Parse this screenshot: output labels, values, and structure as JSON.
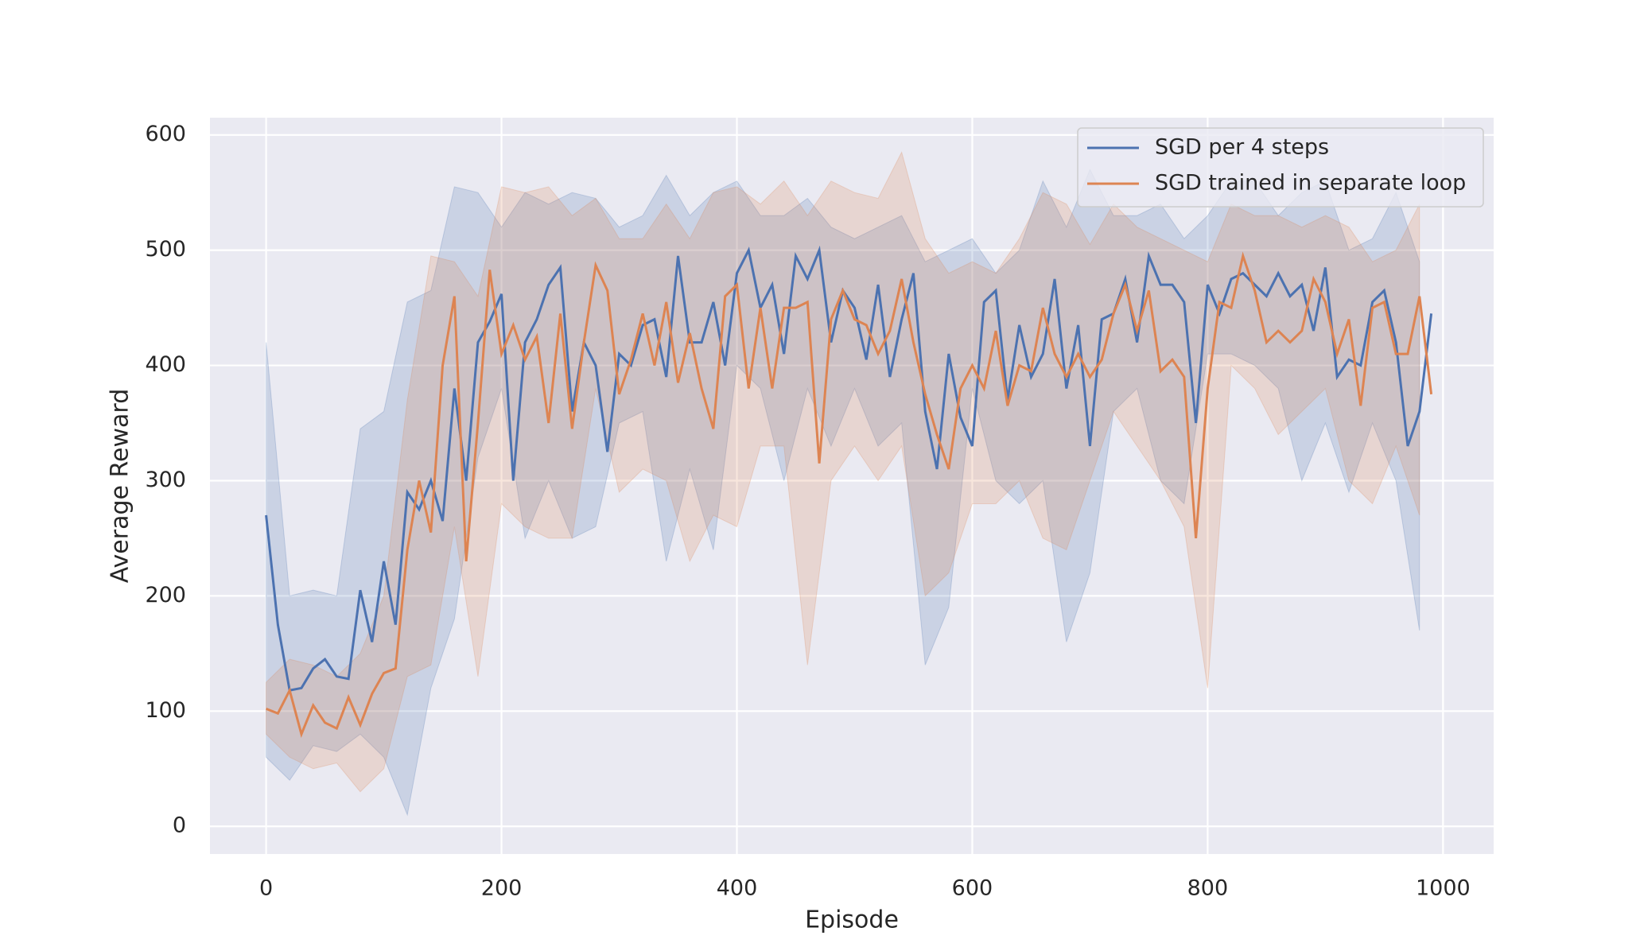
{
  "chart_data": {
    "type": "line",
    "x_label": "Episode",
    "y_label": "Average Reward",
    "xlim": [
      -47.7,
      1043
    ],
    "ylim": [
      -24,
      615
    ],
    "xticks": [
      0,
      200,
      400,
      600,
      800,
      1000
    ],
    "yticks": [
      0,
      100,
      200,
      300,
      400,
      500,
      600
    ],
    "grid": true,
    "legend": "upper right",
    "background": "#eaeaf2",
    "x": [
      0,
      10,
      20,
      30,
      40,
      50,
      60,
      70,
      80,
      90,
      100,
      110,
      120,
      130,
      140,
      150,
      160,
      170,
      180,
      190,
      200,
      210,
      220,
      230,
      240,
      250,
      260,
      270,
      280,
      290,
      300,
      310,
      320,
      330,
      340,
      350,
      360,
      370,
      380,
      390,
      400,
      410,
      420,
      430,
      440,
      450,
      460,
      470,
      480,
      490,
      500,
      510,
      520,
      530,
      540,
      550,
      560,
      570,
      580,
      590,
      600,
      610,
      620,
      630,
      640,
      650,
      660,
      670,
      680,
      690,
      700,
      710,
      720,
      730,
      740,
      750,
      760,
      770,
      780,
      790,
      800,
      810,
      820,
      830,
      840,
      850,
      860,
      870,
      880,
      890,
      900,
      910,
      920,
      930,
      940,
      950,
      960,
      970,
      980,
      990
    ],
    "band_x": [
      0,
      20,
      40,
      60,
      80,
      100,
      120,
      140,
      160,
      180,
      200,
      220,
      240,
      260,
      280,
      300,
      320,
      340,
      360,
      380,
      400,
      420,
      440,
      460,
      480,
      500,
      520,
      540,
      560,
      580,
      600,
      620,
      640,
      660,
      680,
      700,
      720,
      740,
      760,
      780,
      800,
      820,
      840,
      860,
      880,
      900,
      920,
      940,
      960,
      980
    ],
    "series": [
      {
        "name": "SGD per 4 steps",
        "color": "#4c72b0",
        "values": [
          270,
          175,
          118,
          120,
          137,
          145,
          130,
          128,
          205,
          160,
          230,
          175,
          290,
          275,
          300,
          265,
          380,
          300,
          420,
          438,
          462,
          300,
          420,
          440,
          470,
          485,
          360,
          420,
          400,
          325,
          410,
          400,
          435,
          440,
          390,
          495,
          420,
          420,
          455,
          400,
          480,
          500,
          450,
          470,
          410,
          495,
          475,
          500,
          420,
          465,
          450,
          405,
          470,
          390,
          440,
          480,
          360,
          310,
          410,
          355,
          330,
          455,
          465,
          370,
          435,
          390,
          410,
          475,
          380,
          435,
          330,
          440,
          445,
          475,
          420,
          495,
          470,
          470,
          455,
          350,
          470,
          445,
          475,
          480,
          470,
          460,
          480,
          460,
          470,
          430,
          485,
          390,
          405,
          400,
          455,
          465,
          420,
          330,
          360,
          445
        ],
        "lower": [
          60,
          40,
          70,
          65,
          80,
          60,
          10,
          120,
          180,
          320,
          380,
          250,
          300,
          250,
          260,
          350,
          360,
          230,
          310,
          240,
          400,
          380,
          300,
          380,
          330,
          380,
          330,
          350,
          140,
          190,
          380,
          300,
          280,
          300,
          160,
          220,
          360,
          380,
          300,
          280,
          410,
          410,
          400,
          380,
          300,
          350,
          290,
          350,
          300,
          170
        ],
        "upper": [
          420,
          200,
          205,
          200,
          345,
          360,
          455,
          465,
          555,
          550,
          520,
          550,
          540,
          550,
          545,
          520,
          530,
          565,
          530,
          550,
          560,
          530,
          530,
          545,
          520,
          510,
          520,
          530,
          490,
          500,
          510,
          480,
          500,
          560,
          520,
          570,
          530,
          530,
          540,
          510,
          530,
          560,
          560,
          530,
          550,
          560,
          500,
          510,
          550,
          490
        ]
      },
      {
        "name": "SGD trained in separate loop",
        "color": "#dd8452",
        "values": [
          102,
          98,
          118,
          80,
          105,
          90,
          85,
          112,
          88,
          115,
          133,
          137,
          240,
          300,
          255,
          400,
          460,
          230,
          350,
          483,
          410,
          435,
          405,
          425,
          350,
          445,
          345,
          420,
          487,
          465,
          375,
          405,
          445,
          400,
          455,
          385,
          428,
          380,
          345,
          460,
          470,
          380,
          450,
          380,
          450,
          450,
          455,
          315,
          440,
          465,
          440,
          435,
          410,
          430,
          475,
          420,
          375,
          340,
          310,
          380,
          400,
          380,
          430,
          365,
          400,
          395,
          450,
          410,
          390,
          410,
          390,
          405,
          445,
          470,
          430,
          465,
          395,
          405,
          390,
          250,
          380,
          455,
          450,
          495,
          465,
          420,
          430,
          420,
          430,
          475,
          455,
          410,
          440,
          365,
          450,
          455,
          410,
          410,
          460,
          375
        ],
        "lower": [
          80,
          60,
          50,
          55,
          30,
          50,
          130,
          140,
          260,
          130,
          280,
          260,
          250,
          250,
          380,
          290,
          310,
          300,
          230,
          270,
          260,
          330,
          330,
          140,
          300,
          330,
          300,
          330,
          200,
          220,
          280,
          280,
          300,
          250,
          240,
          300,
          360,
          330,
          300,
          260,
          120,
          400,
          380,
          340,
          360,
          380,
          300,
          280,
          330,
          270
        ],
        "upper": [
          125,
          145,
          140,
          130,
          150,
          200,
          370,
          495,
          490,
          460,
          555,
          550,
          555,
          530,
          545,
          510,
          510,
          540,
          510,
          550,
          555,
          540,
          560,
          530,
          560,
          550,
          545,
          585,
          510,
          480,
          490,
          480,
          510,
          550,
          540,
          505,
          540,
          520,
          510,
          500,
          490,
          540,
          530,
          530,
          520,
          530,
          520,
          490,
          500,
          540
        ]
      }
    ]
  }
}
